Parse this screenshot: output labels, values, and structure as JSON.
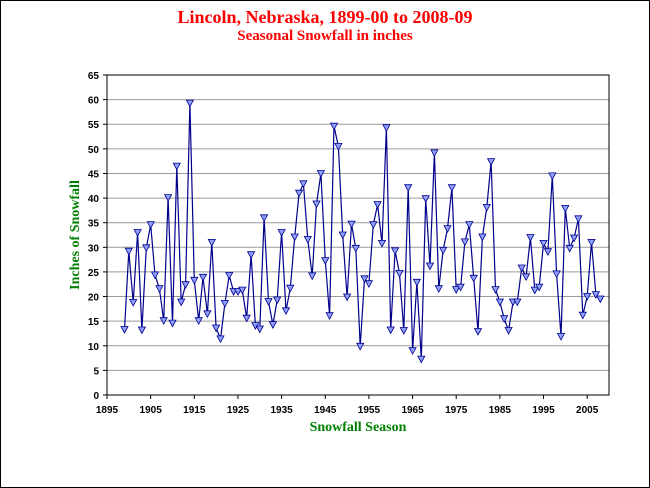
{
  "chart_data": {
    "type": "line",
    "title": "Lincoln, Nebraska, 1899-00 to 2008-09",
    "subtitle": "Seasonal Snowfall in inches",
    "xlabel": "Snowfall Season",
    "ylabel": "Inches of Snowfall",
    "xlim": [
      1895,
      2010
    ],
    "ylim": [
      0,
      65
    ],
    "x_ticks": [
      1895,
      1905,
      1915,
      1925,
      1935,
      1945,
      1955,
      1965,
      1975,
      1985,
      1995,
      2005
    ],
    "y_ticks": [
      0,
      5,
      10,
      15,
      20,
      25,
      30,
      35,
      40,
      45,
      50,
      55,
      60,
      65
    ],
    "grid": true,
    "series": [
      {
        "color": "#00008b",
        "marker_color": "#8fa0ff",
        "x": [
          1899,
          1900,
          1901,
          1902,
          1903,
          1904,
          1905,
          1906,
          1907,
          1908,
          1909,
          1910,
          1911,
          1912,
          1913,
          1914,
          1915,
          1916,
          1917,
          1918,
          1919,
          1920,
          1921,
          1922,
          1923,
          1924,
          1925,
          1926,
          1927,
          1928,
          1929,
          1930,
          1931,
          1932,
          1933,
          1934,
          1935,
          1936,
          1937,
          1938,
          1939,
          1940,
          1941,
          1942,
          1943,
          1944,
          1945,
          1946,
          1947,
          1948,
          1949,
          1950,
          1951,
          1952,
          1953,
          1954,
          1955,
          1956,
          1957,
          1958,
          1959,
          1960,
          1961,
          1962,
          1963,
          1964,
          1965,
          1966,
          1967,
          1968,
          1969,
          1970,
          1971,
          1972,
          1973,
          1974,
          1975,
          1976,
          1977,
          1978,
          1979,
          1980,
          1981,
          1982,
          1983,
          1984,
          1985,
          1986,
          1987,
          1988,
          1989,
          1990,
          1991,
          1992,
          1993,
          1994,
          1995,
          1996,
          1997,
          1998,
          1999,
          2000,
          2001,
          2002,
          2003,
          2004,
          2005,
          2006,
          2007,
          2008
        ],
        "y": [
          13.3,
          29.2,
          18.8,
          33.0,
          13.2,
          29.9,
          34.6,
          24.4,
          21.6,
          15.1,
          40.1,
          14.6,
          46.5,
          18.9,
          22.4,
          59.3,
          23.3,
          15.1,
          23.9,
          16.5,
          31.0,
          13.6,
          11.4,
          18.6,
          24.3,
          21.0,
          21.0,
          21.3,
          15.6,
          28.5,
          14.1,
          13.4,
          36.0,
          19.0,
          14.3,
          19.3,
          33.0,
          17.1,
          21.7,
          32.1,
          41.0,
          42.9,
          31.6,
          24.2,
          38.8,
          45.0,
          27.3,
          16.1,
          54.6,
          50.5,
          32.5,
          19.9,
          34.7,
          29.8,
          9.9,
          23.6,
          22.6,
          34.6,
          38.7,
          30.8,
          54.3,
          13.2,
          29.3,
          24.7,
          13.1,
          42.1,
          9.0,
          22.9,
          7.3,
          39.9,
          26.2,
          49.2,
          21.6,
          29.4,
          33.8,
          42.1,
          21.4,
          21.9,
          31.1,
          34.6,
          23.7,
          12.9,
          32.1,
          38.1,
          47.4,
          21.4,
          18.9,
          15.5,
          13.1,
          18.9,
          18.9,
          25.8,
          24.0,
          32.0,
          21.3,
          21.9,
          30.8,
          29.1,
          44.5,
          24.6,
          11.9,
          37.9,
          29.8,
          31.9,
          35.8,
          16.2,
          20.0,
          31.0,
          20.4,
          19.5
        ]
      }
    ]
  }
}
